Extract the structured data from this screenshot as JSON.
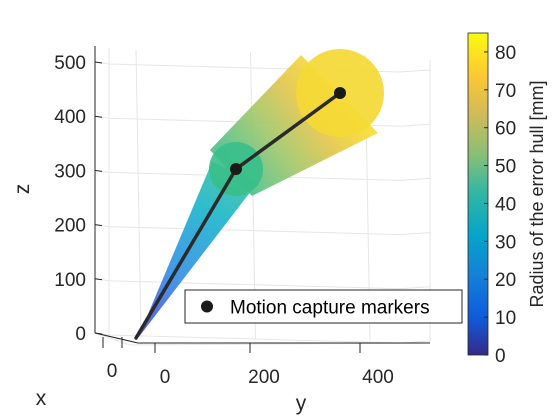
{
  "chart_data": {
    "type": "scatter",
    "view": "3d",
    "axes": {
      "x": {
        "label": "x",
        "ticks": [
          "0"
        ]
      },
      "y": {
        "label": "y",
        "ticks": [
          "0",
          "200",
          "400"
        ]
      },
      "z": {
        "label": "z",
        "ticks": [
          "0",
          "100",
          "200",
          "300",
          "400",
          "500"
        ],
        "range": [
          0,
          500
        ]
      }
    },
    "grid": true,
    "series": [
      {
        "name": "Motion capture markers",
        "marker": "circle",
        "color": "#1a1a1a",
        "points": [
          {
            "y": 0,
            "z": 0,
            "hull_radius_mm": 0
          },
          {
            "y": 115,
            "z": 300,
            "hull_radius_mm": 48
          },
          {
            "y": 320,
            "z": 440,
            "hull_radius_mm": 82
          }
        ]
      }
    ],
    "legend": {
      "position": "bottom-right",
      "entry": "Motion capture markers"
    },
    "colorbar": {
      "label": "Radius of the error hull [mm]",
      "ticks": [
        "0",
        "10",
        "20",
        "30",
        "40",
        "50",
        "60",
        "70",
        "80"
      ],
      "range": [
        0,
        85
      ],
      "colormap": "parula"
    }
  }
}
